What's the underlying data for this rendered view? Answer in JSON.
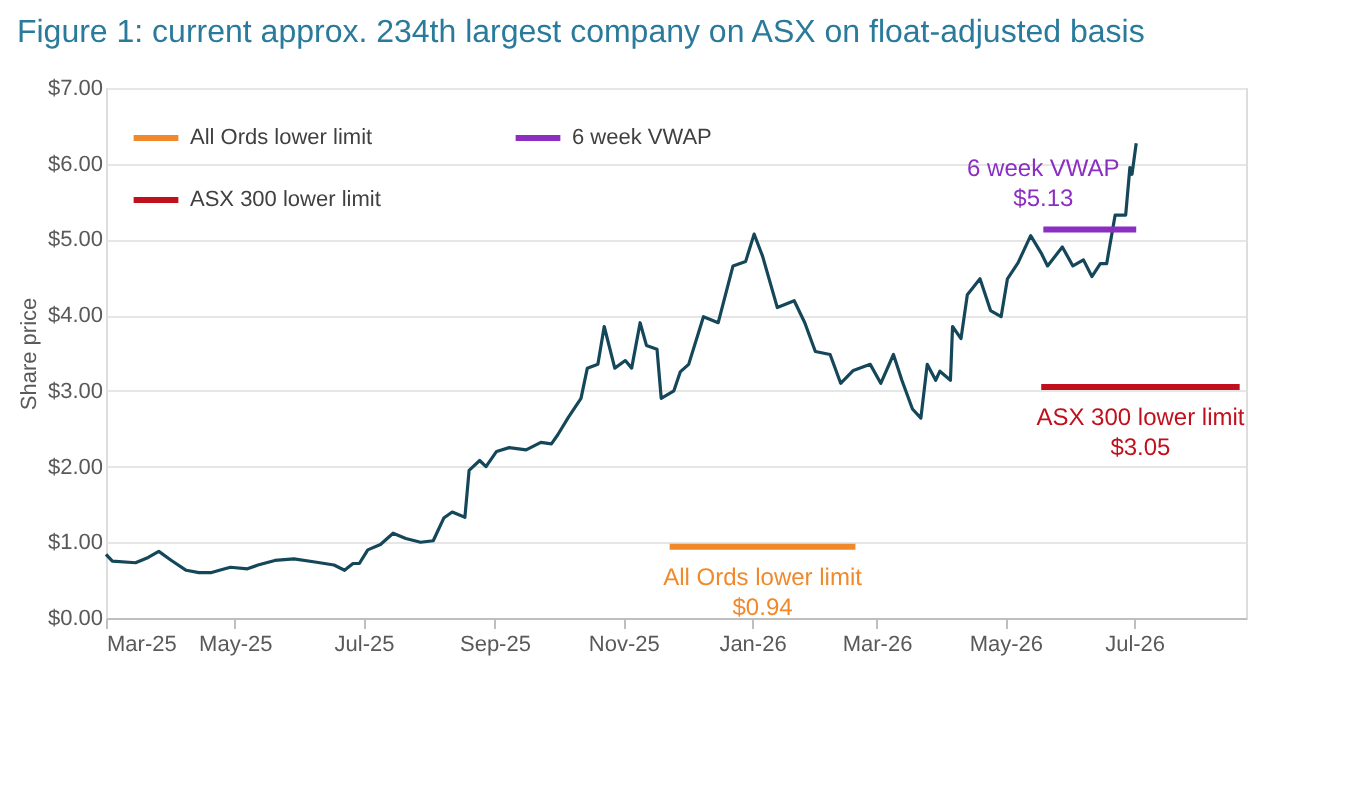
{
  "chart_data": {
    "type": "line",
    "title": "Figure 1: current approx. 234th largest company on ASX on float-adjusted basis",
    "ylabel": "Share price",
    "xlim": [
      "2025-03-01",
      "2026-08-23"
    ],
    "xticks": [
      {
        "value": "2025-03-01",
        "label": "Mar-25"
      },
      {
        "value": "2025-05-01",
        "label": "May-25"
      },
      {
        "value": "2025-07-01",
        "label": "Jul-25"
      },
      {
        "value": "2025-09-01",
        "label": "Sep-25"
      },
      {
        "value": "2025-11-01",
        "label": "Nov-25"
      },
      {
        "value": "2026-01-01",
        "label": "Jan-26"
      },
      {
        "value": "2026-03-01",
        "label": "Mar-26"
      },
      {
        "value": "2026-05-01",
        "label": "May-26"
      },
      {
        "value": "2026-07-01",
        "label": "Jul-26"
      }
    ],
    "ylim": [
      0,
      7
    ],
    "yticks": [
      {
        "value": 0,
        "label": "$0.00"
      },
      {
        "value": 1,
        "label": "$1.00"
      },
      {
        "value": 2,
        "label": "$2.00"
      },
      {
        "value": 3,
        "label": "$3.00"
      },
      {
        "value": 4,
        "label": "$4.00"
      },
      {
        "value": 5,
        "label": "$5.00"
      },
      {
        "value": 6,
        "label": "$6.00"
      },
      {
        "value": 7,
        "label": "$7.00"
      }
    ],
    "grid": "y",
    "legend": "top left",
    "line_style": "solid",
    "marker": "none",
    "series": [
      {
        "color": "#15475a",
        "x": [
          "2025-03-01",
          "2025-03-04",
          "2025-03-15",
          "2025-03-21",
          "2025-03-26",
          "2025-04-01",
          "2025-04-08",
          "2025-04-14",
          "2025-04-20",
          "2025-04-25",
          "2025-04-29",
          "2025-05-07",
          "2025-05-12",
          "2025-05-20",
          "2025-05-29",
          "2025-06-08",
          "2025-06-17",
          "2025-06-22",
          "2025-06-26",
          "2025-06-29",
          "2025-07-03",
          "2025-07-09",
          "2025-07-15",
          "2025-07-21",
          "2025-07-28",
          "2025-08-03",
          "2025-08-08",
          "2025-08-12",
          "2025-08-18",
          "2025-08-20",
          "2025-08-25",
          "2025-08-28",
          "2025-09-02",
          "2025-09-08",
          "2025-09-16",
          "2025-09-23",
          "2025-09-28",
          "2025-10-01",
          "2025-10-06",
          "2025-10-12",
          "2025-10-15",
          "2025-10-20",
          "2025-10-23",
          "2025-10-28",
          "2025-11-02",
          "2025-11-05",
          "2025-11-09",
          "2025-11-12",
          "2025-11-17",
          "2025-11-19",
          "2025-11-25",
          "2025-11-28",
          "2025-12-02",
          "2025-12-09",
          "2025-12-16",
          "2025-12-23",
          "2025-12-29",
          "2026-01-02",
          "2026-01-06",
          "2026-01-13",
          "2026-01-21",
          "2026-01-26",
          "2026-01-31",
          "2026-02-07",
          "2026-02-12",
          "2026-02-18",
          "2026-02-26",
          "2026-03-03",
          "2026-03-09",
          "2026-03-13",
          "2026-03-18",
          "2026-03-22",
          "2026-03-25",
          "2026-03-29",
          "2026-03-31",
          "2026-04-05",
          "2026-04-06",
          "2026-04-10",
          "2026-04-13",
          "2026-04-19",
          "2026-04-24",
          "2026-04-29",
          "2026-05-02",
          "2026-05-07",
          "2026-05-13",
          "2026-05-18",
          "2026-05-21",
          "2026-05-28",
          "2026-06-02",
          "2026-06-07",
          "2026-06-11",
          "2026-06-15",
          "2026-06-18",
          "2026-06-22",
          "2026-06-27",
          "2026-06-29",
          "2026-06-30",
          "2026-07-02"
        ],
        "values": [
          0.84,
          0.75,
          0.73,
          0.8,
          0.88,
          0.76,
          0.63,
          0.6,
          0.6,
          0.64,
          0.67,
          0.65,
          0.7,
          0.76,
          0.78,
          0.74,
          0.7,
          0.63,
          0.72,
          0.72,
          0.9,
          0.97,
          1.12,
          1.05,
          1.0,
          1.02,
          1.32,
          1.4,
          1.33,
          1.95,
          2.08,
          2.0,
          2.2,
          2.25,
          2.22,
          2.32,
          2.3,
          2.42,
          2.65,
          2.9,
          3.3,
          3.35,
          3.85,
          3.3,
          3.4,
          3.3,
          3.9,
          3.6,
          3.55,
          2.9,
          3.0,
          3.25,
          3.35,
          3.98,
          3.9,
          4.65,
          4.71,
          5.07,
          4.78,
          4.1,
          4.19,
          3.9,
          3.52,
          3.48,
          3.1,
          3.27,
          3.35,
          3.1,
          3.48,
          3.14,
          2.76,
          2.64,
          3.35,
          3.14,
          3.26,
          3.14,
          3.85,
          3.69,
          4.27,
          4.48,
          4.06,
          3.98,
          4.48,
          4.69,
          5.05,
          4.82,
          4.65,
          4.9,
          4.65,
          4.73,
          4.51,
          4.68,
          4.68,
          5.32,
          5.32,
          5.95,
          5.86,
          6.27
        ]
      },
      {
        "name": "All Ords lower limit",
        "color": "#f0892b",
        "x": [
          "2025-11-23",
          "2026-02-19"
        ],
        "values": [
          0.94,
          0.94
        ]
      },
      {
        "name": "ASX 300 lower limit",
        "color": "#c0101e",
        "x": [
          "2026-05-18",
          "2026-08-20"
        ],
        "values": [
          3.05,
          3.05
        ]
      },
      {
        "name": "6 week VWAP",
        "color": "#8b2fc2",
        "x": [
          "2026-05-19",
          "2026-07-02"
        ],
        "values": [
          5.13,
          5.13
        ]
      }
    ],
    "annotations": [
      "All Ords lower limit\n$0.94",
      "ASX 300 lower limit\n$3.05",
      "6 week VWAP\n$5.13"
    ]
  }
}
